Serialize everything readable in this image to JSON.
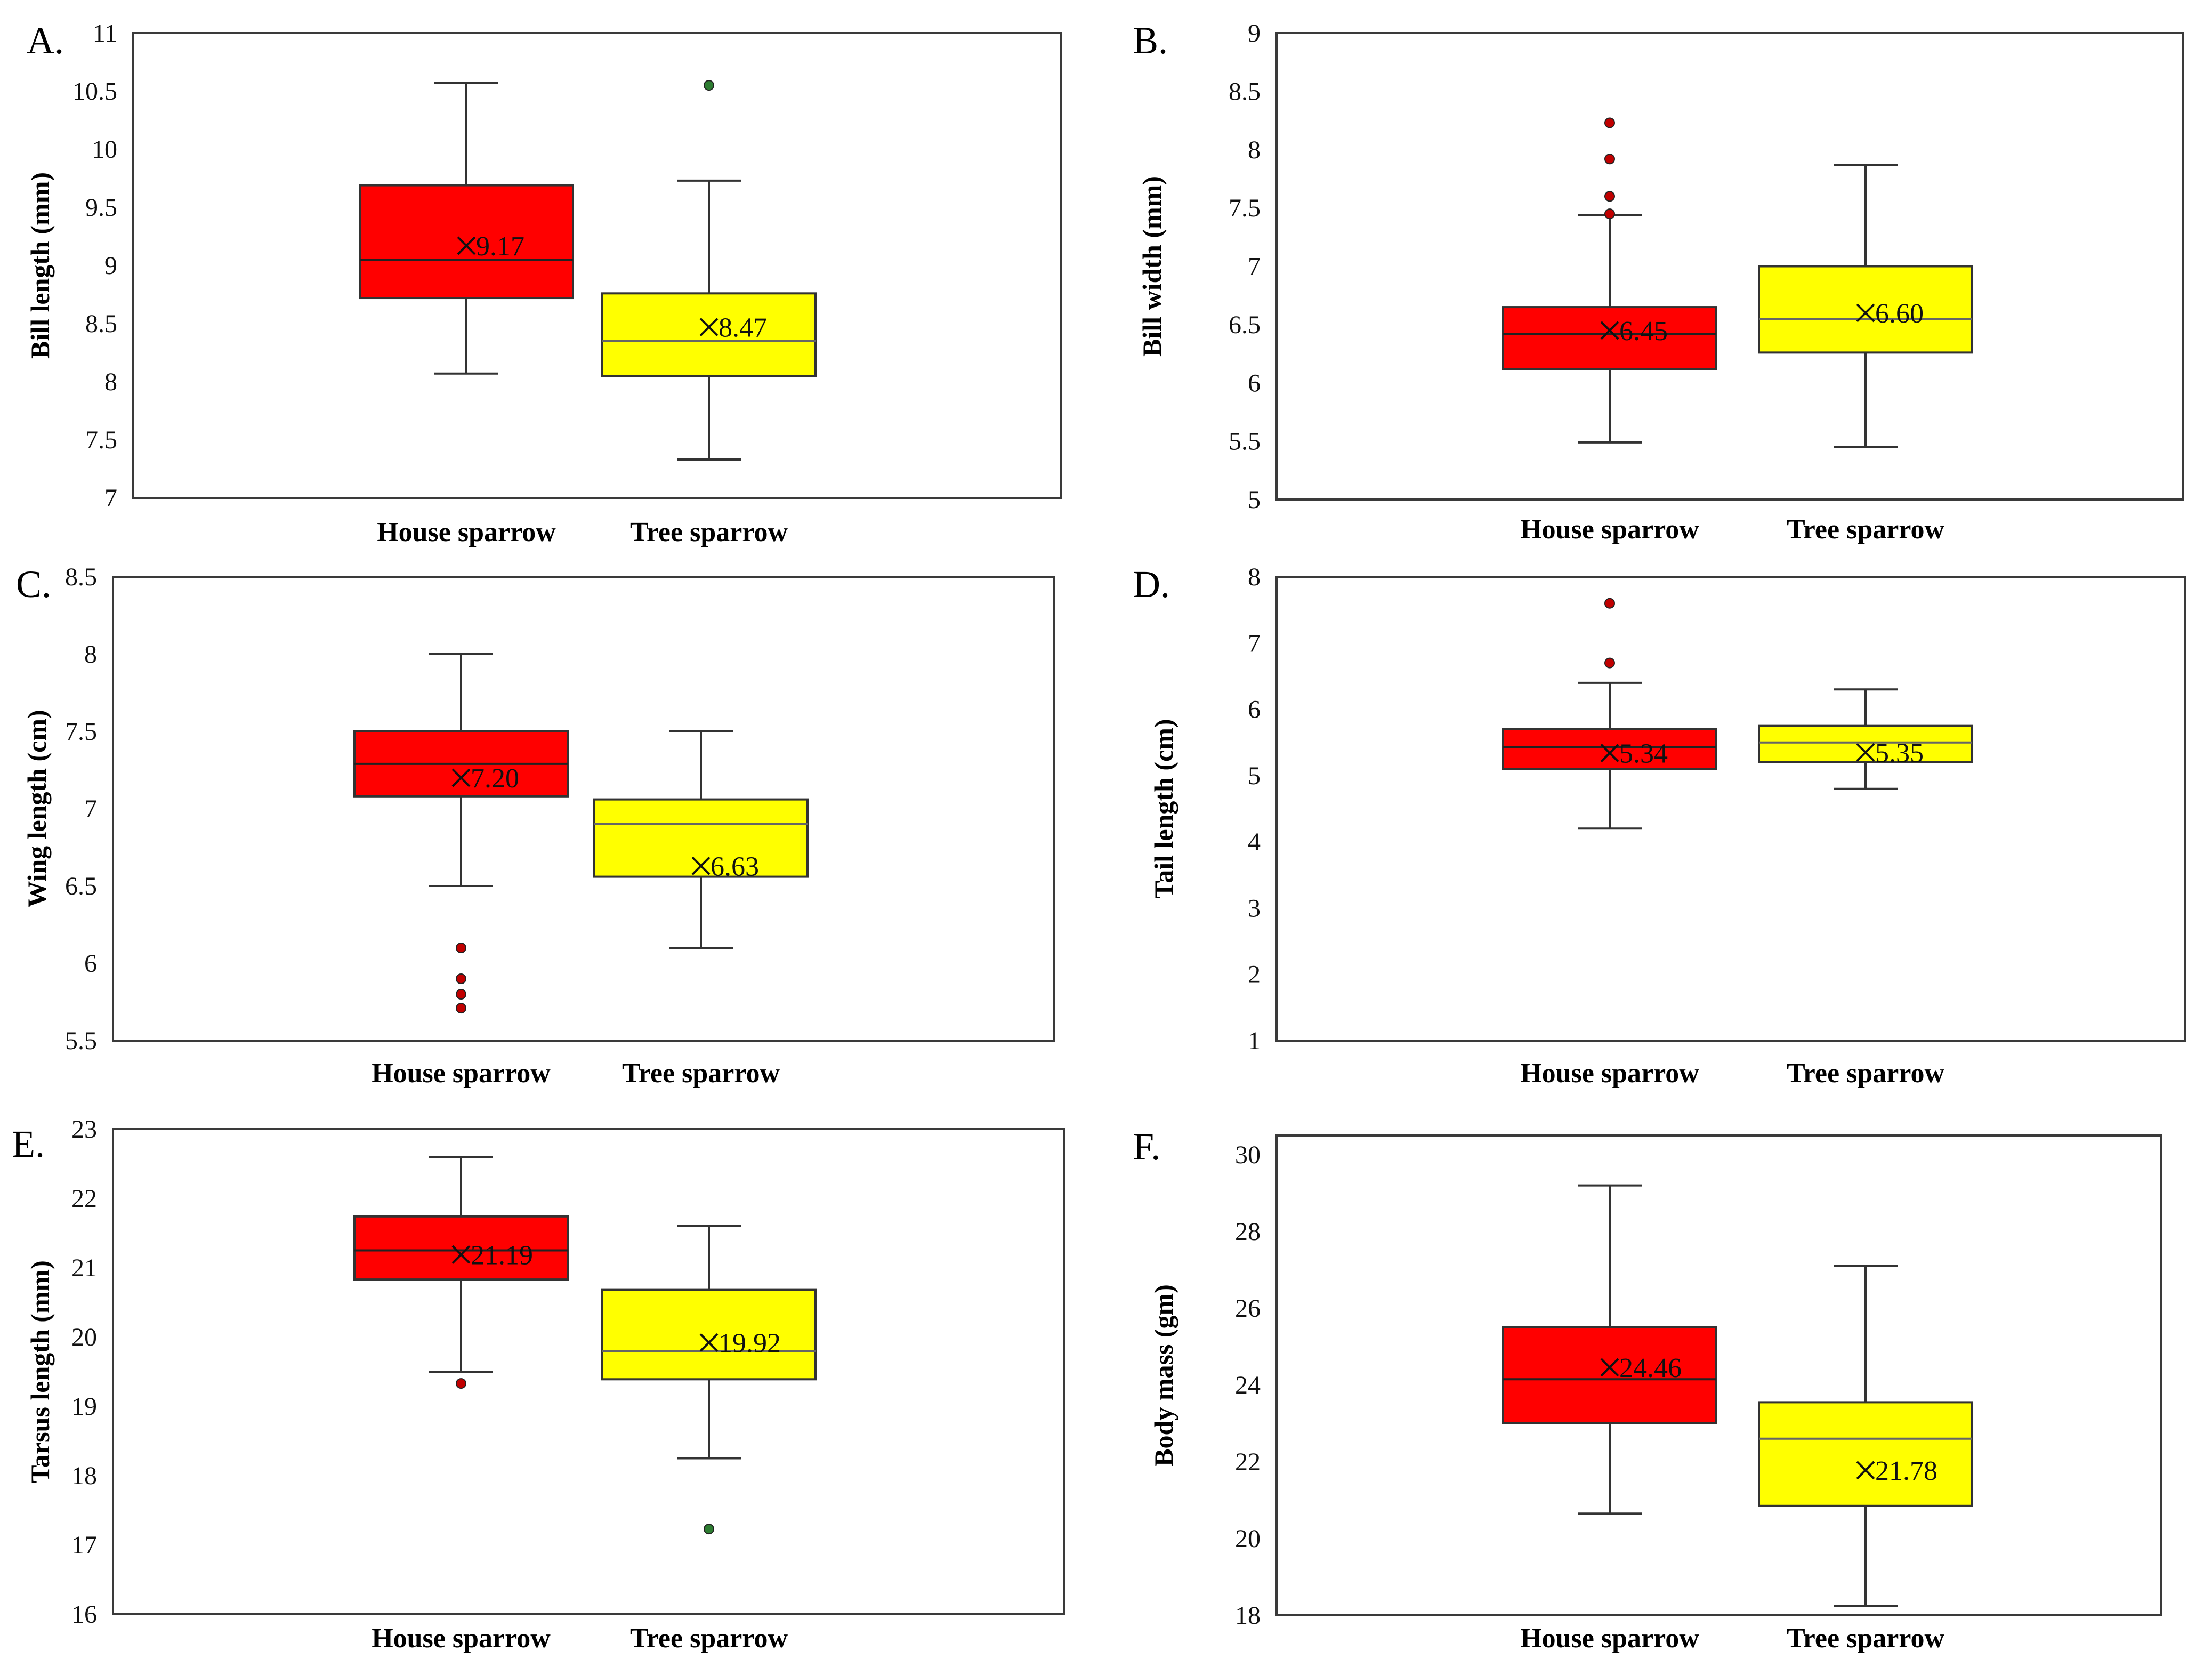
{
  "chart_data": [
    {
      "type": "boxplot",
      "panel": "A.",
      "ylabel": "Bill length (mm)",
      "ylim": [
        7,
        11
      ],
      "yticks": [
        7,
        7.5,
        8,
        8.5,
        9,
        9.5,
        10,
        10.5,
        11
      ],
      "categories": [
        "House sparrow",
        "Tree sparrow"
      ],
      "series": [
        {
          "name": "House sparrow",
          "color": "#ff0000",
          "whisker_low": 8.07,
          "q1": 8.72,
          "median": 9.05,
          "q3": 9.69,
          "whisker_high": 10.57,
          "mean": 9.17,
          "mean_label": "9.17",
          "outliers": [],
          "outlier_color": "#c00000"
        },
        {
          "name": "Tree sparrow",
          "color": "#ffff00",
          "whisker_low": 7.33,
          "q1": 8.05,
          "median": 8.35,
          "q3": 8.76,
          "whisker_high": 9.73,
          "mean": 8.47,
          "mean_label": "8.47",
          "outliers": [
            10.55
          ],
          "outlier_color": "#2e7d32"
        }
      ]
    },
    {
      "type": "boxplot",
      "panel": "B.",
      "ylabel": "Bill width (mm)",
      "ylim": [
        5,
        9
      ],
      "yticks": [
        5,
        5.5,
        6,
        6.5,
        7,
        7.5,
        8,
        8.5,
        9
      ],
      "categories": [
        "House sparrow",
        "Tree sparrow"
      ],
      "series": [
        {
          "name": "House sparrow",
          "color": "#ff0000",
          "whisker_low": 5.49,
          "q1": 6.12,
          "median": 6.42,
          "q3": 6.65,
          "whisker_high": 7.44,
          "mean": 6.45,
          "mean_label": "6.45",
          "outliers": [
            7.45,
            7.6,
            7.92,
            8.23
          ],
          "outlier_color": "#c00000"
        },
        {
          "name": "Tree sparrow",
          "color": "#ffff00",
          "whisker_low": 5.45,
          "q1": 6.26,
          "median": 6.55,
          "q3": 7.0,
          "whisker_high": 7.87,
          "mean": 6.6,
          "mean_label": "6.60",
          "outliers": [],
          "outlier_color": "#2e7d32"
        }
      ]
    },
    {
      "type": "boxplot",
      "panel": "C.",
      "ylabel": "Wing length (cm)",
      "ylim": [
        5.5,
        8.5
      ],
      "yticks": [
        5.5,
        6,
        6.5,
        7,
        7.5,
        8,
        8.5
      ],
      "categories": [
        "House sparrow",
        "Tree sparrow"
      ],
      "series": [
        {
          "name": "House sparrow",
          "color": "#ff0000",
          "whisker_low": 6.5,
          "q1": 7.08,
          "median": 7.29,
          "q3": 7.5,
          "whisker_high": 8.0,
          "mean": 7.2,
          "mean_label": "7.20",
          "outliers": [
            5.71,
            5.8,
            5.9,
            6.1
          ],
          "outlier_color": "#c00000"
        },
        {
          "name": "Tree sparrow",
          "color": "#ffff00",
          "whisker_low": 6.1,
          "q1": 6.56,
          "median": 6.9,
          "q3": 7.06,
          "whisker_high": 7.5,
          "mean": 6.63,
          "mean_label": "6.63",
          "outliers": [],
          "outlier_color": "#2e7d32"
        }
      ]
    },
    {
      "type": "boxplot",
      "panel": "D.",
      "ylabel": "Tail length (cm)",
      "ylim": [
        1,
        8
      ],
      "yticks": [
        1,
        2,
        3,
        4,
        5,
        6,
        7,
        8
      ],
      "categories": [
        "House sparrow",
        "Tree sparrow"
      ],
      "series": [
        {
          "name": "House sparrow",
          "color": "#ff0000",
          "whisker_low": 4.2,
          "q1": 5.1,
          "median": 5.43,
          "q3": 5.7,
          "whisker_high": 6.4,
          "mean": 5.34,
          "mean_label": "5.34",
          "outliers": [
            6.7,
            7.6
          ],
          "outlier_color": "#c00000"
        },
        {
          "name": "Tree sparrow",
          "color": "#ffff00",
          "whisker_low": 4.8,
          "q1": 5.2,
          "median": 5.5,
          "q3": 5.75,
          "whisker_high": 6.3,
          "mean": 5.35,
          "mean_label": "5.35",
          "outliers": [],
          "outlier_color": "#2e7d32"
        }
      ]
    },
    {
      "type": "boxplot",
      "panel": "E.",
      "ylabel": "Tarsus length (mm)",
      "ylim": [
        16,
        23
      ],
      "yticks": [
        16,
        17,
        18,
        19,
        20,
        21,
        22,
        23
      ],
      "categories": [
        "House sparrow",
        "Tree sparrow"
      ],
      "series": [
        {
          "name": "House sparrow",
          "color": "#ff0000",
          "whisker_low": 19.5,
          "q1": 20.83,
          "median": 21.25,
          "q3": 21.74,
          "whisker_high": 22.6,
          "mean": 21.19,
          "mean_label": "21.19",
          "outliers": [
            19.33
          ],
          "outlier_color": "#c00000"
        },
        {
          "name": "Tree sparrow",
          "color": "#ffff00",
          "whisker_low": 18.25,
          "q1": 19.39,
          "median": 19.8,
          "q3": 20.68,
          "whisker_high": 21.6,
          "mean": 19.92,
          "mean_label": "19.92",
          "outliers": [
            17.23
          ],
          "outlier_color": "#2e7d32"
        }
      ]
    },
    {
      "type": "boxplot",
      "panel": "F.",
      "ylabel": "Body mass (gm)",
      "ylim": [
        18,
        30.5
      ],
      "yticks": [
        18,
        20,
        22,
        24,
        26,
        28,
        30
      ],
      "categories": [
        "House sparrow",
        "Tree sparrow"
      ],
      "series": [
        {
          "name": "House sparrow",
          "color": "#ff0000",
          "whisker_low": 20.65,
          "q1": 23.0,
          "median": 24.15,
          "q3": 25.5,
          "whisker_high": 29.2,
          "mean": 24.46,
          "mean_label": "24.46",
          "outliers": [],
          "outlier_color": "#c00000"
        },
        {
          "name": "Tree sparrow",
          "color": "#ffff00",
          "whisker_low": 18.25,
          "q1": 20.85,
          "median": 22.6,
          "q3": 23.55,
          "whisker_high": 27.1,
          "mean": 21.78,
          "mean_label": "21.78",
          "outliers": [],
          "outlier_color": "#2e7d32"
        }
      ]
    }
  ]
}
